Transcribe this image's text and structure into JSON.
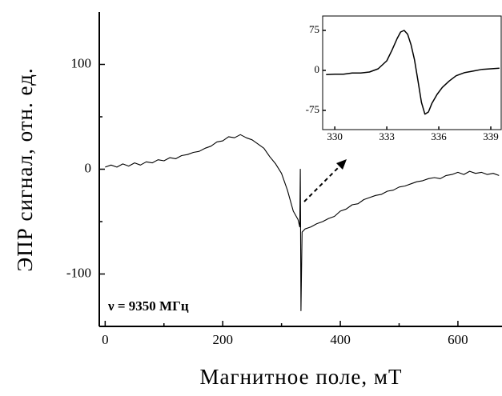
{
  "chart_data": [
    {
      "type": "line",
      "xlabel": "Магнитное поле, мТ",
      "ylabel": "ЭПР сигнал, отн. ед.",
      "annotation": "ν = 9350 МГц",
      "xlim": [
        -10,
        675
      ],
      "ylim": [
        -150,
        150
      ],
      "xticks": [
        0,
        200,
        400,
        600
      ],
      "yticks": [
        -100,
        0,
        100
      ],
      "x_minor_ticks": [
        100,
        300,
        500
      ],
      "y_minor_ticks": [
        -50,
        50
      ],
      "series": [
        {
          "color": "#000000",
          "x": [
            0,
            10,
            20,
            30,
            40,
            50,
            60,
            70,
            80,
            90,
            100,
            110,
            120,
            130,
            140,
            150,
            160,
            170,
            180,
            190,
            200,
            210,
            220,
            230,
            240,
            250,
            260,
            270,
            280,
            290,
            300,
            310,
            320,
            328,
            331,
            332,
            333,
            335,
            340,
            350,
            360,
            370,
            380,
            390,
            400,
            410,
            420,
            430,
            440,
            450,
            460,
            470,
            480,
            490,
            500,
            510,
            520,
            530,
            540,
            550,
            560,
            570,
            580,
            590,
            600,
            610,
            620,
            630,
            640,
            650,
            660,
            670
          ],
          "values": [
            2,
            4,
            2,
            5,
            3,
            6,
            4,
            7,
            6,
            9,
            8,
            11,
            10,
            13,
            14,
            16,
            17,
            20,
            22,
            26,
            27,
            31,
            30,
            33,
            30,
            28,
            24,
            20,
            12,
            5,
            -4,
            -20,
            -40,
            -48,
            -55,
            0,
            -135,
            -60,
            -57,
            -55,
            -52,
            -50,
            -47,
            -45,
            -40,
            -38,
            -34,
            -33,
            -29,
            -27,
            -25,
            -24,
            -21,
            -20,
            -17,
            -16,
            -14,
            -12,
            -11,
            -9,
            -8,
            -9,
            -6,
            -5,
            -3,
            -5,
            -2,
            -4,
            -3,
            -5,
            -4,
            -6
          ]
        }
      ]
    },
    {
      "type": "line",
      "xlim": [
        329.3,
        339.6
      ],
      "ylim": [
        -111,
        102
      ],
      "xticks": [
        330,
        333,
        336,
        339
      ],
      "yticks": [
        -75,
        0,
        75
      ],
      "series": [
        {
          "color": "#000000",
          "x": [
            329.5,
            330,
            330.5,
            331,
            331.5,
            332,
            332.5,
            333,
            333.3,
            333.6,
            333.8,
            334,
            334.2,
            334.4,
            334.6,
            334.8,
            335,
            335.2,
            335.4,
            335.6,
            335.9,
            336.2,
            336.6,
            337,
            337.5,
            338,
            338.5,
            339,
            339.5
          ],
          "values": [
            -8,
            -7,
            -7,
            -5,
            -5,
            -3,
            3,
            18,
            38,
            60,
            72,
            75,
            68,
            48,
            20,
            -20,
            -60,
            -82,
            -78,
            -62,
            -45,
            -32,
            -20,
            -10,
            -4,
            -1,
            2,
            3,
            4
          ]
        }
      ]
    }
  ]
}
